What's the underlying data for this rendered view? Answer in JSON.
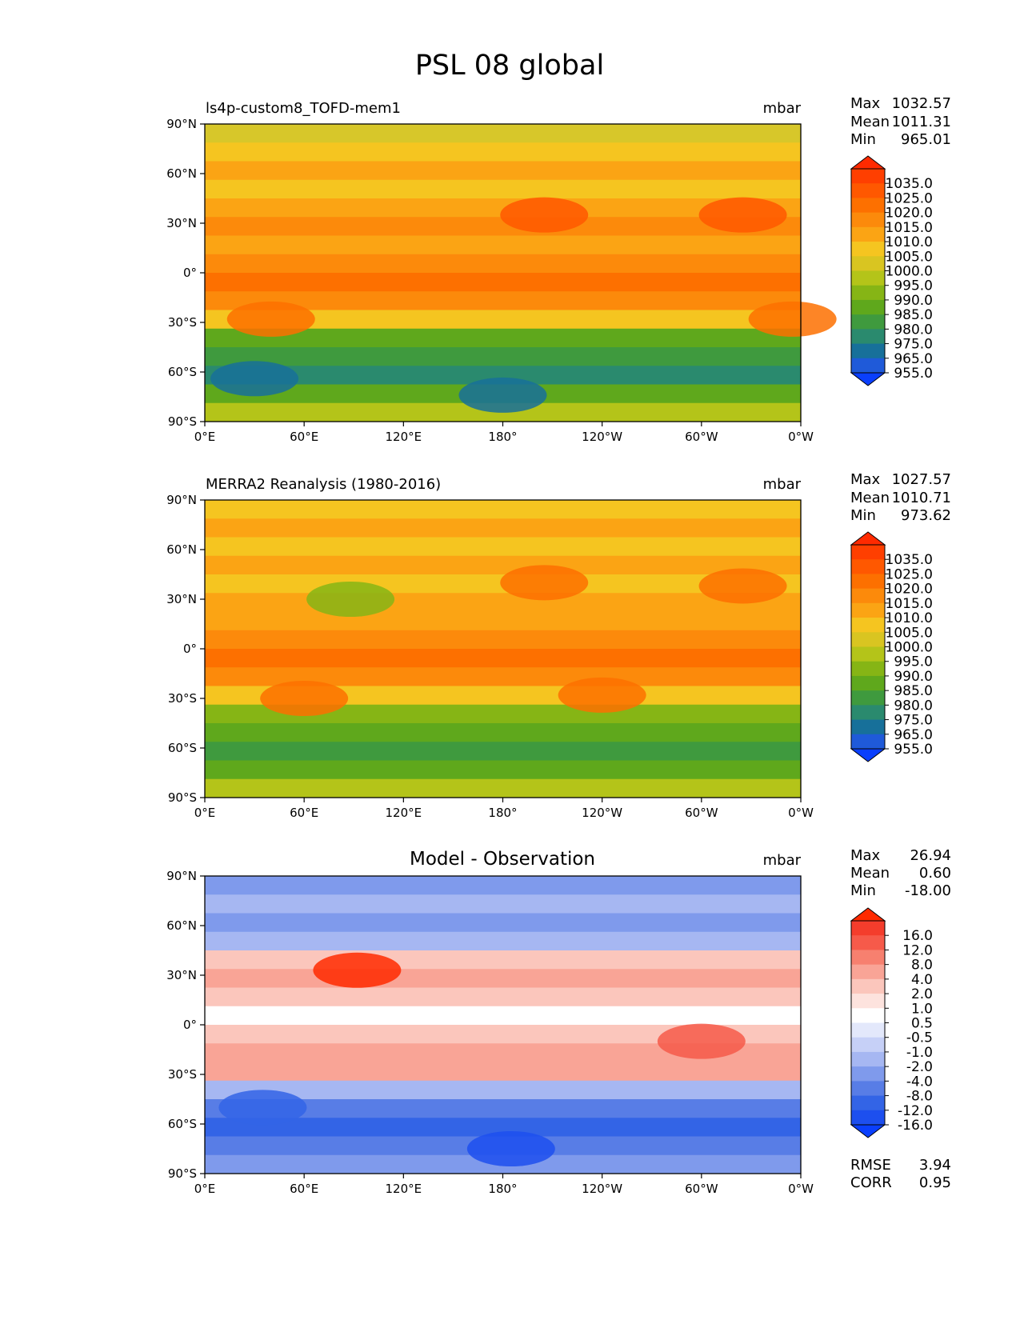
{
  "title": "PSL 08 global",
  "chart_data": [
    {
      "type": "heatmap",
      "title": "ls4p-custom8_TOFD-mem1",
      "units": "mbar",
      "stats": [
        {
          "label": "Max",
          "value": "1032.57"
        },
        {
          "label": "Mean",
          "value": "1011.31"
        },
        {
          "label": "Min",
          "value": "965.01"
        }
      ],
      "xticks": [
        "0°E",
        "60°E",
        "120°E",
        "180°",
        "120°W",
        "60°W",
        "0°W"
      ],
      "yticks": [
        "90°N",
        "60°N",
        "30°N",
        "0°",
        "30°S",
        "60°S",
        "90°S"
      ],
      "xlim": [
        0,
        360
      ],
      "ylim": [
        -90,
        90
      ],
      "colorbar": {
        "labels": [
          "1035.0",
          "1025.0",
          "1020.0",
          "1015.0",
          "1010.0",
          "1005.0",
          "1000.0",
          "995.0",
          "990.0",
          "985.0",
          "980.0",
          "975.0",
          "965.0",
          "955.0"
        ],
        "colors": [
          "#ff2a00",
          "#ff3f00",
          "#ff5800",
          "#fd7000",
          "#fc8a0b",
          "#fba414",
          "#f5c520",
          "#d9c521",
          "#b4c419",
          "#86b515",
          "#5fa81c",
          "#3f9a3e",
          "#2a8a6e",
          "#17709a",
          "#1f5ad9",
          "#0a3ffd"
        ]
      },
      "zonal_band_colors": [
        "#d7c72a",
        "#f5c520",
        "#fba414",
        "#f5c520",
        "#fba414",
        "#fc8a0b",
        "#fba414",
        "#fc8a0b",
        "#fd7000",
        "#fc8a0b",
        "#f5c520",
        "#5fa81c",
        "#3f9a3e",
        "#2a8a6e",
        "#5fa81c",
        "#b4c419"
      ],
      "highs": [
        {
          "lon": 205,
          "lat": 35,
          "color": "#ff5800"
        },
        {
          "lon": 325,
          "lat": 35,
          "color": "#ff5800"
        },
        {
          "lon": 40,
          "lat": -28,
          "color": "#fd7000"
        },
        {
          "lon": 355,
          "lat": -28,
          "color": "#fd7000"
        },
        {
          "lon": 180,
          "lat": -74,
          "color": "#17709a"
        },
        {
          "lon": 30,
          "lat": -64,
          "color": "#17709a"
        }
      ]
    },
    {
      "type": "heatmap",
      "title": "MERRA2 Reanalysis (1980-2016)",
      "units": "mbar",
      "stats": [
        {
          "label": "Max",
          "value": "1027.57"
        },
        {
          "label": "Mean",
          "value": "1010.71"
        },
        {
          "label": "Min",
          "value": "973.62"
        }
      ],
      "xticks": [
        "0°E",
        "60°E",
        "120°E",
        "180°",
        "120°W",
        "60°W",
        "0°W"
      ],
      "yticks": [
        "90°N",
        "60°N",
        "30°N",
        "0°",
        "30°S",
        "60°S",
        "90°S"
      ],
      "xlim": [
        0,
        360
      ],
      "ylim": [
        -90,
        90
      ],
      "colorbar": {
        "labels": [
          "1035.0",
          "1025.0",
          "1020.0",
          "1015.0",
          "1010.0",
          "1005.0",
          "1000.0",
          "995.0",
          "990.0",
          "985.0",
          "980.0",
          "975.0",
          "965.0",
          "955.0"
        ],
        "colors": [
          "#ff2a00",
          "#ff3f00",
          "#ff5800",
          "#fd7000",
          "#fc8a0b",
          "#fba414",
          "#f5c520",
          "#d9c521",
          "#b4c419",
          "#86b515",
          "#5fa81c",
          "#3f9a3e",
          "#2a8a6e",
          "#17709a",
          "#1f5ad9",
          "#0a3ffd"
        ]
      },
      "zonal_band_colors": [
        "#f5c520",
        "#fba414",
        "#f5c520",
        "#fba414",
        "#f5c520",
        "#fba414",
        "#fba414",
        "#fc8a0b",
        "#fd7000",
        "#fc8a0b",
        "#f5c520",
        "#86b515",
        "#5fa81c",
        "#3f9a3e",
        "#5fa81c",
        "#b4c419"
      ],
      "highs": [
        {
          "lon": 205,
          "lat": 40,
          "color": "#fd7000"
        },
        {
          "lon": 325,
          "lat": 38,
          "color": "#fd7000"
        },
        {
          "lon": 60,
          "lat": -30,
          "color": "#fd7000"
        },
        {
          "lon": 240,
          "lat": -28,
          "color": "#fd7000"
        },
        {
          "lon": 88,
          "lat": 30,
          "color": "#86b515"
        }
      ]
    },
    {
      "type": "heatmap",
      "title": "Model - Observation",
      "units": "mbar",
      "stats": [
        {
          "label": "Max",
          "value": "26.94"
        },
        {
          "label": "Mean",
          "value": "0.60"
        },
        {
          "label": "Min",
          "value": "-18.00"
        }
      ],
      "extra_stats": [
        {
          "label": "RMSE",
          "value": "3.94"
        },
        {
          "label": "CORR",
          "value": "0.95"
        }
      ],
      "xticks": [
        "0°E",
        "60°E",
        "120°E",
        "180°",
        "120°W",
        "60°W",
        "0°W"
      ],
      "yticks": [
        "90°N",
        "60°N",
        "30°N",
        "0°",
        "30°S",
        "60°S",
        "90°S"
      ],
      "xlim": [
        0,
        360
      ],
      "ylim": [
        -90,
        90
      ],
      "colorbar": {
        "labels": [
          "16.0",
          "12.0",
          "8.0",
          "4.0",
          "2.0",
          "1.0",
          "0.5",
          "-0.5",
          "-1.0",
          "-2.0",
          "-4.0",
          "-8.0",
          "-12.0",
          "-16.0"
        ],
        "colors": [
          "#ff2a00",
          "#f43d2c",
          "#f65a4a",
          "#f7806f",
          "#f9a496",
          "#fbc6bc",
          "#fde3de",
          "#ffffff",
          "#e3e8fb",
          "#c6d0f7",
          "#a6b7f2",
          "#7f9aec",
          "#587de6",
          "#3364e6",
          "#1d4fef",
          "#0a3ffd"
        ]
      },
      "zonal_band_colors": [
        "#7f9aec",
        "#a6b7f2",
        "#7f9aec",
        "#a6b7f2",
        "#fbc6bc",
        "#f9a496",
        "#fbc6bc",
        "#ffffff",
        "#fbc6bc",
        "#f9a496",
        "#f9a496",
        "#a6b7f2",
        "#587de6",
        "#3364e6",
        "#587de6",
        "#7f9aec"
      ],
      "highs": [
        {
          "lon": 92,
          "lat": 33,
          "color": "#ff2a00"
        },
        {
          "lon": 185,
          "lat": -75,
          "color": "#1d4fef"
        },
        {
          "lon": 300,
          "lat": -10,
          "color": "#f65a4a"
        },
        {
          "lon": 35,
          "lat": -50,
          "color": "#3364e6"
        }
      ]
    }
  ]
}
